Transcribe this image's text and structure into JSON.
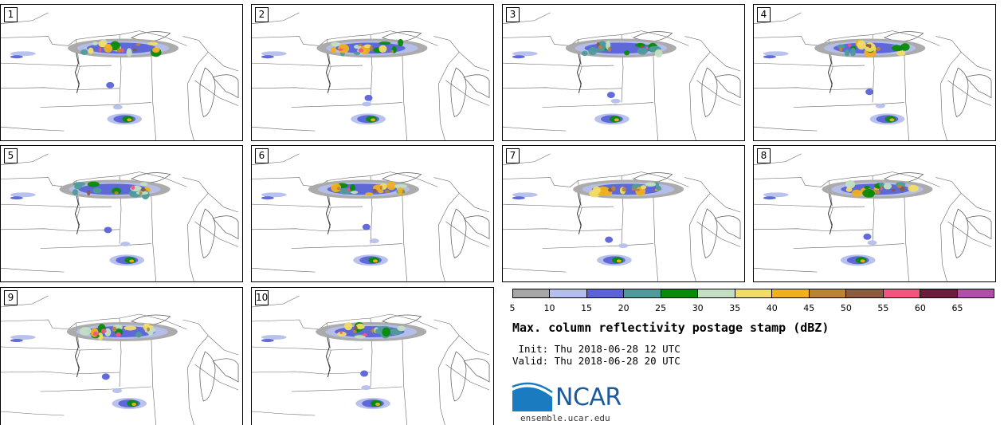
{
  "panels": [
    {
      "label": "1"
    },
    {
      "label": "2"
    },
    {
      "label": "3"
    },
    {
      "label": "4"
    },
    {
      "label": "5"
    },
    {
      "label": "6"
    },
    {
      "label": "7"
    },
    {
      "label": "8"
    },
    {
      "label": "9"
    },
    {
      "label": "10"
    }
  ],
  "colorbar": {
    "ticks": [
      "5",
      "10",
      "15",
      "20",
      "25",
      "30",
      "35",
      "40",
      "45",
      "50",
      "55",
      "60",
      "65"
    ],
    "colors": [
      "#a6a6a6",
      "#b4bfec",
      "#5a63d8",
      "#4f9a9b",
      "#0a8a0a",
      "#c3dfc3",
      "#f1dd66",
      "#f1b01d",
      "#bb8434",
      "#8b5a3f",
      "#f3557f",
      "#6a1c3a",
      "#b04ea9"
    ]
  },
  "title": "Max. column reflectivity postage stamp (dBZ)",
  "init": " Init: Thu 2018-06-28 12 UTC",
  "valid": "Valid: Thu 2018-06-28 20 UTC",
  "logo": {
    "text": "NCAR",
    "url": "ensemble.ucar.edu",
    "colors": {
      "blue": "#1b7bc1",
      "dark": "#1b5b9c"
    }
  }
}
